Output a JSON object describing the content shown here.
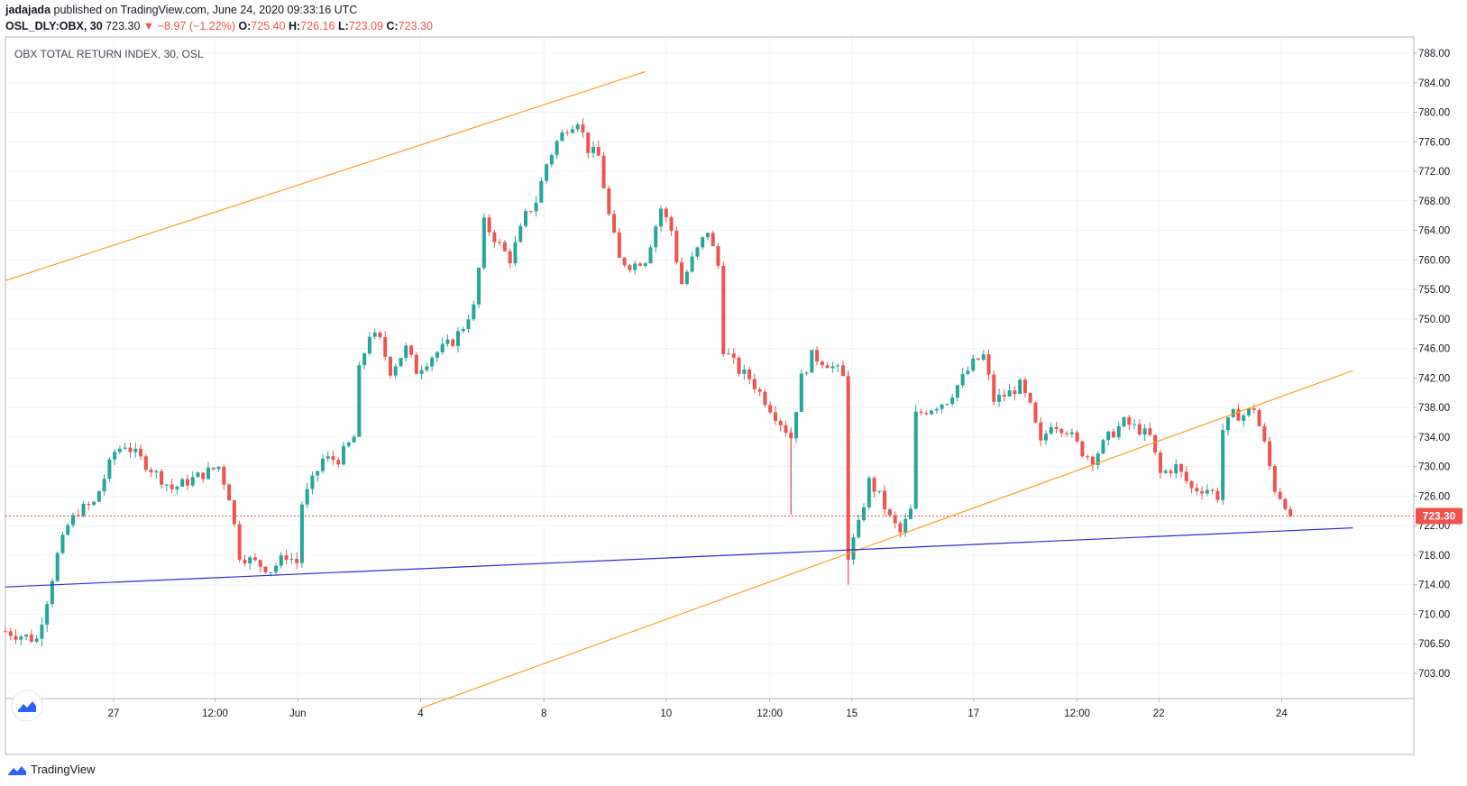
{
  "header": {
    "author": "jadajada",
    "published": "published on TradingView.com, June 24, 2020 09:33:16 UTC",
    "symbol": "OSL_DLY:OBX, 30",
    "last": "723.30",
    "change": "−8.97 (−1.22%)",
    "o_label": "O:",
    "o_val": "725.40",
    "h_label": "H:",
    "h_val": "726.16",
    "l_label": "L:",
    "l_val": "723.09",
    "c_label": "C:",
    "c_val": "723.30"
  },
  "footer": {
    "brand": "TradingView"
  },
  "colors": {
    "up": "#26a69a",
    "down": "#ef5350",
    "trend_orange": "#f7a21b",
    "trend_blue": "#2b2bd6",
    "price_tag": "#ef5350"
  },
  "chart_data": {
    "type": "candlestick",
    "title": "OBX TOTAL RETURN INDEX, 30, OSL",
    "x_ticks": [
      "27",
      "12:00",
      "Jun",
      "4",
      "8",
      "10",
      "12:00",
      "15",
      "17",
      "12:00",
      "22",
      "24"
    ],
    "y_ticks": [
      703.0,
      706.5,
      710.0,
      714.0,
      718.0,
      722.0,
      726.0,
      730.0,
      734.0,
      738.0,
      742.0,
      746.0,
      750.0,
      755.0,
      760.0,
      764.0,
      768.0,
      772.0,
      776.0,
      780.0,
      784.0,
      788.0
    ],
    "current_price": 723.3,
    "grid": true,
    "trendlines": [
      {
        "color": "orange",
        "from": [
          0,
          756.5
        ],
        "to": [
          123,
          785.5
        ]
      },
      {
        "color": "orange",
        "from": [
          80,
          698.9
        ],
        "to": [
          259,
          743.0
        ]
      },
      {
        "color": "blue",
        "from": [
          0,
          713.7
        ],
        "to": [
          259,
          721.7
        ]
      }
    ],
    "close_path": [
      [
        0,
        708
      ],
      [
        6,
        707
      ],
      [
        8,
        712
      ],
      [
        10,
        718
      ],
      [
        12,
        722
      ],
      [
        14,
        724
      ],
      [
        17,
        725
      ],
      [
        21,
        732
      ],
      [
        23,
        733
      ],
      [
        26,
        731
      ],
      [
        29,
        729
      ],
      [
        32,
        727
      ],
      [
        35,
        728
      ],
      [
        38,
        729
      ],
      [
        41,
        730
      ],
      [
        43,
        726
      ],
      [
        45,
        718
      ],
      [
        48,
        717
      ],
      [
        51,
        716
      ],
      [
        54,
        718
      ],
      [
        56,
        717
      ],
      [
        57,
        725
      ],
      [
        59,
        728
      ],
      [
        61,
        731
      ],
      [
        64,
        731
      ],
      [
        67,
        734
      ],
      [
        68,
        743
      ],
      [
        70,
        748
      ],
      [
        72,
        747
      ],
      [
        74,
        743
      ],
      [
        77,
        746
      ],
      [
        79,
        743
      ],
      [
        82,
        745
      ],
      [
        86,
        747
      ],
      [
        88,
        749
      ],
      [
        90,
        752
      ],
      [
        92,
        765
      ],
      [
        94,
        763
      ],
      [
        97,
        760
      ],
      [
        100,
        766
      ],
      [
        102,
        768
      ],
      [
        104,
        773
      ],
      [
        106,
        776
      ],
      [
        108,
        778
      ],
      [
        110,
        779
      ],
      [
        112,
        775
      ],
      [
        114,
        774
      ],
      [
        116,
        766
      ],
      [
        118,
        760
      ],
      [
        120,
        759
      ],
      [
        123,
        760
      ],
      [
        126,
        767
      ],
      [
        128,
        764
      ],
      [
        130,
        756
      ],
      [
        132,
        760
      ],
      [
        135,
        764
      ],
      [
        137,
        759
      ],
      [
        138,
        746
      ],
      [
        141,
        743
      ],
      [
        143,
        742
      ],
      [
        145,
        740
      ],
      [
        147,
        738
      ],
      [
        149,
        736
      ],
      [
        151,
        734
      ],
      [
        153,
        742
      ],
      [
        155,
        745
      ],
      [
        158,
        744
      ],
      [
        160,
        743
      ],
      [
        161,
        742
      ],
      [
        162,
        718
      ],
      [
        164,
        722
      ],
      [
        166,
        728
      ],
      [
        168,
        726
      ],
      [
        170,
        723
      ],
      [
        172,
        721
      ],
      [
        174,
        724
      ],
      [
        175,
        737
      ],
      [
        178,
        738
      ],
      [
        181,
        739
      ],
      [
        184,
        742
      ],
      [
        186,
        744
      ],
      [
        188,
        745
      ],
      [
        190,
        739
      ],
      [
        193,
        740
      ],
      [
        195,
        741
      ],
      [
        197,
        738
      ],
      [
        199,
        733
      ],
      [
        201,
        736
      ],
      [
        204,
        735
      ],
      [
        207,
        732
      ],
      [
        209,
        731
      ],
      [
        212,
        734
      ],
      [
        215,
        736
      ],
      [
        218,
        735
      ],
      [
        220,
        734
      ],
      [
        222,
        729
      ],
      [
        225,
        730
      ],
      [
        228,
        727
      ],
      [
        231,
        727
      ],
      [
        233,
        726
      ],
      [
        234,
        735
      ],
      [
        236,
        737
      ],
      [
        238,
        737
      ],
      [
        240,
        738
      ],
      [
        242,
        733
      ],
      [
        244,
        727
      ],
      [
        246,
        725
      ],
      [
        247,
        723.3
      ]
    ],
    "spikes": [
      {
        "x": 151,
        "high": 735,
        "low": 723.5
      },
      {
        "x": 162,
        "high": 743,
        "low": 714
      }
    ]
  }
}
